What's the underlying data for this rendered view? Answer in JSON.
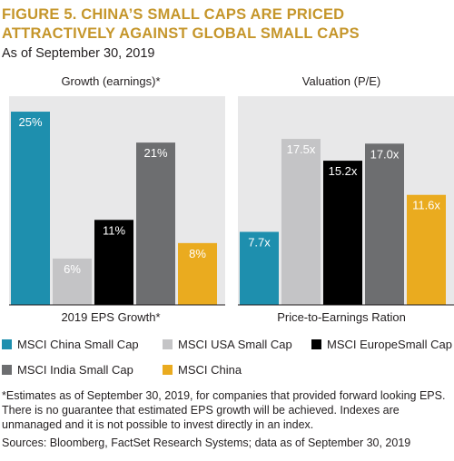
{
  "title": "FIGURE 5. CHINA’S SMALL CAPS ARE PRICED ATTRACTIVELY AGAINST GLOBAL SMALL CAPS",
  "subtitle": "As of September 30, 2019",
  "chart_data": [
    {
      "type": "bar",
      "title": "Growth (earnings)*",
      "xlabel": "2019 EPS Growth*",
      "ylim": [
        0,
        27
      ],
      "categories": [
        "MSCI China Small Cap",
        "MSCI USA Small Cap",
        "MSCI EuropeSmall Cap",
        "MSCI India Small Cap",
        "MSCI China"
      ],
      "values": [
        25,
        6,
        11,
        21,
        8
      ],
      "labels": [
        "25%",
        "6%",
        "11%",
        "21%",
        "8%"
      ]
    },
    {
      "type": "bar",
      "title": "Valuation (P/E)",
      "xlabel": "Price-to-Earnings Ration",
      "ylim": [
        0,
        22
      ],
      "categories": [
        "MSCI China Small Cap",
        "MSCI USA Small Cap",
        "MSCI EuropeSmall Cap",
        "MSCI India Small Cap",
        "MSCI China"
      ],
      "values": [
        7.7,
        17.5,
        15.2,
        17.0,
        11.6
      ],
      "labels": [
        "7.7x",
        "17.5x",
        "15.2x",
        "17.0x",
        "11.6x"
      ]
    }
  ],
  "series_colors": [
    "#1e8fae",
    "#c4c4c6",
    "#000000",
    "#6d6e70",
    "#eaab1f"
  ],
  "label_colors": [
    "#ffffff",
    "#ffffff",
    "#ffffff",
    "#ffffff",
    "#ffffff"
  ],
  "legend": [
    {
      "label": "MSCI China Small Cap",
      "color": "#1e8fae"
    },
    {
      "label": "MSCI USA Small Cap",
      "color": "#c4c4c6"
    },
    {
      "label": "MSCI EuropeSmall Cap",
      "color": "#000000"
    },
    {
      "label": "MSCI India Small Cap",
      "color": "#6d6e70"
    },
    {
      "label": "MSCI China",
      "color": "#eaab1f"
    }
  ],
  "footnote": "*Estimates as of September 30, 2019, for companies that provided forward looking EPS. There is no guarantee that estimated EPS growth will be achieved. Indexes are unmanaged and it is not possible to invest directly in an index.",
  "source": "Sources: Bloomberg, FactSet Research Systems; data as of September 30, 2019"
}
